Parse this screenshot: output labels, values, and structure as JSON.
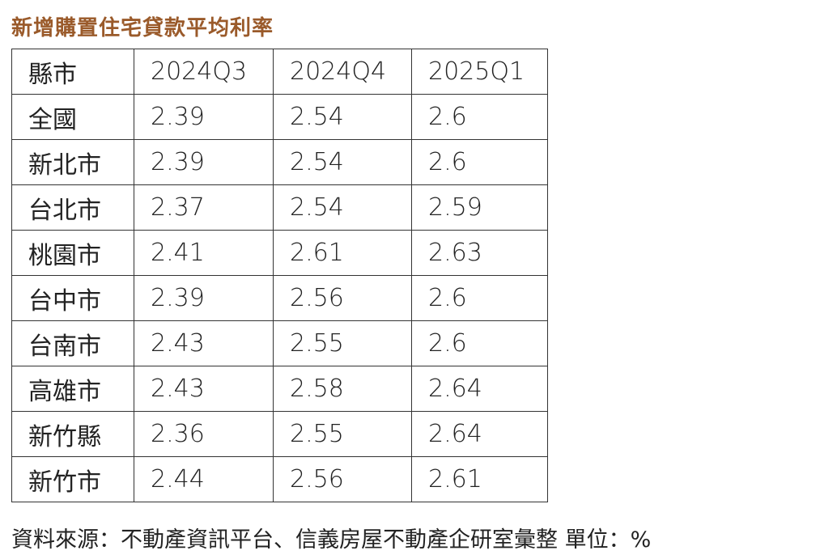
{
  "title": "新增購置住宅貸款平均利率",
  "table": {
    "header": [
      "縣市",
      "2024Q3",
      "2024Q4",
      "2025Q1"
    ],
    "rows": [
      [
        "全國",
        "2.39",
        "2.54",
        "2.6"
      ],
      [
        "新北市",
        "2.39",
        "2.54",
        "2.6"
      ],
      [
        "台北市",
        "2.37",
        "2.54",
        "2.59"
      ],
      [
        "桃園市",
        "2.41",
        "2.61",
        "2.63"
      ],
      [
        "台中市",
        "2.39",
        "2.56",
        "2.6"
      ],
      [
        "台南市",
        "2.43",
        "2.55",
        "2.6"
      ],
      [
        "高雄市",
        "2.43",
        "2.58",
        "2.64"
      ],
      [
        "新竹縣",
        "2.36",
        "2.55",
        "2.64"
      ],
      [
        "新竹市",
        "2.44",
        "2.56",
        "2.61"
      ]
    ]
  },
  "footer": "資料來源：不動產資訊平台、信義房屋不動產企研室彙整 單位：%"
}
